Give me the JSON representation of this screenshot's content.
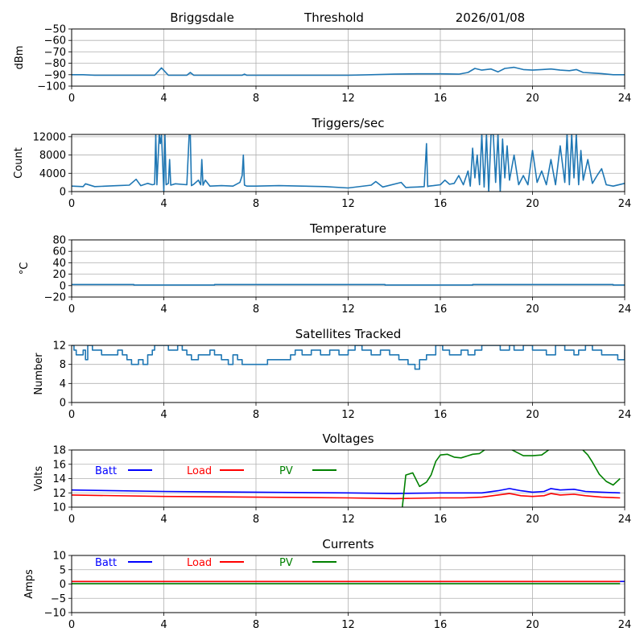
{
  "header": {
    "station": "Briggsdale",
    "mode": "Threshold",
    "date": "2026/01/08"
  },
  "chart_data": [
    {
      "id": "threshold",
      "type": "line",
      "title": "",
      "xlabel": "",
      "ylabel": "dBm",
      "xlim": [
        0,
        24
      ],
      "ylim": [
        -100,
        -50
      ],
      "xticks": [
        0,
        4,
        8,
        12,
        16,
        20,
        24
      ],
      "yticks": [
        -100,
        -90,
        -80,
        -70,
        -60,
        -50
      ],
      "ytick_labels": [
        "−100",
        "−90",
        "−80",
        "−70",
        "−60",
        "−50"
      ],
      "grid": true,
      "series": [
        {
          "name": "Threshold",
          "color": "#1f77b4",
          "x": [
            0,
            0.5,
            1,
            2,
            3,
            3.6,
            3.9,
            4.2,
            5,
            5.15,
            5.3,
            6,
            7.4,
            7.5,
            7.6,
            9,
            11,
            12,
            13,
            14,
            15,
            16,
            16.8,
            17.2,
            17.5,
            17.8,
            18.2,
            18.5,
            18.8,
            19.2,
            19.6,
            20,
            20.4,
            20.8,
            21.2,
            21.6,
            21.9,
            22.2,
            22.6,
            23,
            23.5,
            24
          ],
          "y": [
            -90,
            -90,
            -90.5,
            -90.5,
            -90.5,
            -90.5,
            -84,
            -90.5,
            -90.5,
            -88,
            -90.5,
            -90.5,
            -90.5,
            -89.5,
            -90.5,
            -90.5,
            -90.5,
            -90.5,
            -90,
            -89.5,
            -89.2,
            -89.2,
            -89.5,
            -88,
            -84.5,
            -86,
            -85,
            -87.5,
            -84.5,
            -83.5,
            -85.5,
            -86,
            -85.5,
            -85,
            -86,
            -86.5,
            -85.5,
            -88,
            -88.5,
            -89,
            -90,
            -90
          ]
        }
      ]
    },
    {
      "id": "triggers",
      "type": "line",
      "title": "Triggers/sec",
      "xlabel": "",
      "ylabel": "Count",
      "xlim": [
        0,
        24
      ],
      "ylim": [
        0,
        12500
      ],
      "xticks": [
        0,
        4,
        8,
        12,
        16,
        20,
        24
      ],
      "yticks": [
        0,
        4000,
        8000,
        12000
      ],
      "ytick_labels": [
        "0",
        "4000",
        "8000",
        "12000"
      ],
      "grid": true,
      "series": [
        {
          "name": "Triggers",
          "color": "#1f77b4",
          "x": [
            0,
            0.5,
            0.6,
            1,
            1.5,
            2,
            2.5,
            2.8,
            3,
            3.3,
            3.5,
            3.6,
            3.65,
            3.7,
            3.8,
            3.85,
            3.9,
            4.0,
            4.05,
            4.1,
            4.2,
            4.25,
            4.3,
            4.5,
            5.0,
            5.1,
            5.15,
            5.2,
            5.3,
            5.5,
            5.6,
            5.65,
            5.7,
            5.8,
            6.0,
            6.5,
            7.0,
            7.3,
            7.4,
            7.45,
            7.5,
            7.6,
            8,
            9,
            10,
            11,
            12,
            13,
            13.2,
            13.5,
            14.3,
            14.5,
            15,
            15.3,
            15.4,
            15.45,
            15.5,
            15.7,
            16,
            16.2,
            16.4,
            16.6,
            16.8,
            17,
            17.2,
            17.3,
            17.4,
            17.5,
            17.6,
            17.7,
            17.8,
            17.9,
            18.0,
            18.1,
            18.2,
            18.3,
            18.4,
            18.5,
            18.6,
            18.7,
            18.8,
            18.9,
            19.0,
            19.2,
            19.4,
            19.6,
            19.8,
            20.0,
            20.2,
            20.4,
            20.6,
            20.8,
            21.0,
            21.2,
            21.4,
            21.5,
            21.6,
            21.7,
            21.8,
            21.9,
            22.0,
            22.1,
            22.2,
            22.4,
            22.6,
            22.8,
            23.0,
            23.2,
            23.5,
            24
          ],
          "y": [
            1200,
            1100,
            1700,
            1100,
            1200,
            1300,
            1400,
            2700,
            1300,
            1800,
            1500,
            1600,
            12500,
            1500,
            12500,
            10500,
            12500,
            0,
            12500,
            1500,
            1800,
            7000,
            1400,
            1700,
            1500,
            12500,
            12500,
            1300,
            1600,
            2500,
            1500,
            7000,
            1400,
            2500,
            1200,
            1300,
            1200,
            2000,
            3500,
            8000,
            1400,
            1200,
            1200,
            1300,
            1200,
            1100,
            800,
            1400,
            2200,
            1000,
            2000,
            900,
            1000,
            1100,
            10500,
            1100,
            1200,
            1300,
            1500,
            2500,
            1600,
            1800,
            3500,
            1500,
            4500,
            1200,
            9500,
            3000,
            8000,
            1500,
            12500,
            1000,
            12500,
            0,
            12500,
            12500,
            2000,
            12500,
            0,
            11500,
            3000,
            10000,
            2500,
            8000,
            1500,
            3500,
            1500,
            9000,
            2000,
            4500,
            1500,
            7000,
            1500,
            10000,
            2000,
            12500,
            1500,
            12500,
            3000,
            12500,
            1500,
            9000,
            2500,
            7000,
            1800,
            3500,
            5000,
            1500,
            1200,
            1800
          ]
        }
      ]
    },
    {
      "id": "temperature",
      "type": "line",
      "title": "Temperature",
      "xlabel": "",
      "ylabel": "°C",
      "xlim": [
        0,
        24
      ],
      "ylim": [
        -20,
        80
      ],
      "xticks": [
        0,
        4,
        8,
        12,
        16,
        20,
        24
      ],
      "yticks": [
        -20,
        0,
        20,
        40,
        60,
        80
      ],
      "ytick_labels": [
        "−20",
        "0",
        "20",
        "40",
        "60",
        "80"
      ],
      "grid": true,
      "series": [
        {
          "name": "Temperature",
          "color": "#1f77b4",
          "x": [
            0,
            2.7,
            2.7,
            6.2,
            6.2,
            13.6,
            13.6,
            17.4,
            17.4,
            23.5,
            23.5,
            24
          ],
          "y": [
            2,
            2,
            1,
            1,
            2,
            2,
            1,
            1,
            2,
            2,
            1,
            1
          ]
        }
      ]
    },
    {
      "id": "satellites",
      "type": "line",
      "title": "Satellites Tracked",
      "xlabel": "",
      "ylabel": "Number",
      "xlim": [
        0,
        24
      ],
      "ylim": [
        0,
        12
      ],
      "xticks": [
        0,
        4,
        8,
        12,
        16,
        20,
        24
      ],
      "yticks": [
        0,
        4,
        8,
        12
      ],
      "ytick_labels": [
        "0",
        "4",
        "8",
        "12"
      ],
      "grid": true,
      "series": [
        {
          "name": "Satellites",
          "color": "#1f77b4",
          "step": true,
          "x": [
            0,
            0.1,
            0.2,
            0.5,
            0.6,
            0.7,
            0.9,
            1.3,
            1.5,
            2.0,
            2.2,
            2.4,
            2.6,
            2.9,
            3.1,
            3.3,
            3.5,
            3.6,
            4.0,
            4.2,
            4.6,
            4.8,
            5.0,
            5.2,
            5.5,
            6.0,
            6.2,
            6.5,
            6.8,
            7.0,
            7.2,
            7.4,
            7.6,
            8.5,
            9.0,
            9.5,
            9.7,
            10.0,
            10.4,
            10.8,
            11.2,
            11.6,
            12.0,
            12.3,
            12.6,
            13.0,
            13.4,
            13.8,
            14.2,
            14.6,
            14.9,
            15.1,
            15.4,
            15.8,
            16.1,
            16.4,
            16.9,
            17.2,
            17.5,
            17.8,
            18.0,
            18.6,
            19.0,
            19.2,
            19.6,
            20.0,
            20.6,
            21.0,
            21.4,
            21.8,
            22.0,
            22.3,
            22.6,
            23.0,
            23.7,
            24
          ],
          "y": [
            12,
            11,
            10,
            11,
            9,
            12,
            11,
            10,
            10,
            11,
            10,
            9,
            8,
            9,
            8,
            10,
            11,
            12,
            12,
            11,
            12,
            11,
            10,
            9,
            10,
            11,
            10,
            9,
            8,
            10,
            9,
            8,
            8,
            9,
            9,
            10,
            11,
            10,
            11,
            10,
            11,
            10,
            11,
            12,
            11,
            10,
            11,
            10,
            9,
            8,
            7,
            9,
            10,
            12,
            11,
            10,
            11,
            10,
            11,
            12,
            12,
            11,
            12,
            11,
            12,
            11,
            10,
            12,
            11,
            10,
            11,
            12,
            11,
            10,
            9,
            11
          ]
        }
      ]
    },
    {
      "id": "voltages",
      "type": "line",
      "title": "Voltages",
      "xlabel": "",
      "ylabel": "Volts",
      "xlim": [
        0,
        24
      ],
      "ylim": [
        10,
        18
      ],
      "xticks": [
        0,
        4,
        8,
        12,
        16,
        20,
        24
      ],
      "yticks": [
        10,
        12,
        14,
        16,
        18
      ],
      "ytick_labels": [
        "10",
        "12",
        "14",
        "16",
        "18"
      ],
      "grid": true,
      "legend": [
        {
          "label": "Batt",
          "color": "#0000ff"
        },
        {
          "label": "Load",
          "color": "#ff0000"
        },
        {
          "label": "PV",
          "color": "#008000"
        }
      ],
      "series": [
        {
          "name": "Batt",
          "color": "#0000ff",
          "x": [
            0,
            4,
            8,
            12,
            14,
            16,
            17,
            17.8,
            18.5,
            19,
            19.5,
            20,
            20.5,
            20.8,
            21.2,
            21.8,
            22.3,
            23,
            23.8
          ],
          "y": [
            12.4,
            12.2,
            12.1,
            12.0,
            11.9,
            12.0,
            12.0,
            12.0,
            12.3,
            12.6,
            12.3,
            12.1,
            12.2,
            12.6,
            12.4,
            12.5,
            12.2,
            12.1,
            12.0
          ]
        },
        {
          "name": "Load",
          "color": "#ff0000",
          "x": [
            0,
            4,
            8,
            12,
            14,
            16,
            17,
            17.8,
            18.5,
            19,
            19.5,
            20,
            20.5,
            20.8,
            21.2,
            21.8,
            22.3,
            23,
            23.8
          ],
          "y": [
            11.7,
            11.5,
            11.4,
            11.3,
            11.2,
            11.3,
            11.3,
            11.4,
            11.7,
            11.9,
            11.6,
            11.5,
            11.6,
            11.9,
            11.7,
            11.8,
            11.6,
            11.4,
            11.3
          ]
        },
        {
          "name": "PV",
          "color": "#008000",
          "x": [
            14.35,
            14.5,
            14.8,
            15.1,
            15.4,
            15.6,
            15.8,
            16.0,
            16.3,
            16.6,
            16.9,
            17.2,
            17.4,
            17.7,
            18.0,
            18.3,
            18.6,
            19.0,
            19.3,
            19.6,
            20.0,
            20.4,
            20.7,
            21.0,
            21.5,
            22.0,
            22.4,
            22.6,
            22.9,
            23.2,
            23.5,
            23.8
          ],
          "y": [
            10.0,
            14.5,
            14.8,
            12.9,
            13.5,
            14.5,
            16.4,
            17.3,
            17.4,
            17.0,
            16.9,
            17.2,
            17.4,
            17.5,
            18.2,
            18.8,
            18.6,
            18.2,
            17.7,
            17.2,
            17.2,
            17.3,
            18.0,
            18.6,
            18.7,
            18.6,
            17.3,
            16.3,
            14.6,
            13.6,
            13.1,
            14.0
          ]
        }
      ]
    },
    {
      "id": "currents",
      "type": "line",
      "title": "Currents",
      "xlabel": "",
      "ylabel": "Amps",
      "xlim": [
        0,
        24
      ],
      "ylim": [
        -10,
        10
      ],
      "xticks": [
        0,
        4,
        8,
        12,
        16,
        20,
        24
      ],
      "yticks": [
        -10,
        -5,
        0,
        5,
        10
      ],
      "ytick_labels": [
        "−10",
        "−5",
        "0",
        "5",
        "10"
      ],
      "grid": true,
      "legend": [
        {
          "label": "Batt",
          "color": "#0000ff"
        },
        {
          "label": "Load",
          "color": "#ff0000"
        },
        {
          "label": "PV",
          "color": "#008000"
        }
      ],
      "series": [
        {
          "name": "Batt",
          "color": "#0000ff",
          "x": [
            0,
            24
          ],
          "y": [
            0.9,
            0.9
          ]
        },
        {
          "name": "Load",
          "color": "#ff0000",
          "x": [
            0,
            23.8
          ],
          "y": [
            0.9,
            0.9
          ]
        },
        {
          "name": "PV",
          "color": "#008000",
          "x": [
            0,
            23.8
          ],
          "y": [
            0.1,
            0.1
          ]
        }
      ]
    }
  ]
}
